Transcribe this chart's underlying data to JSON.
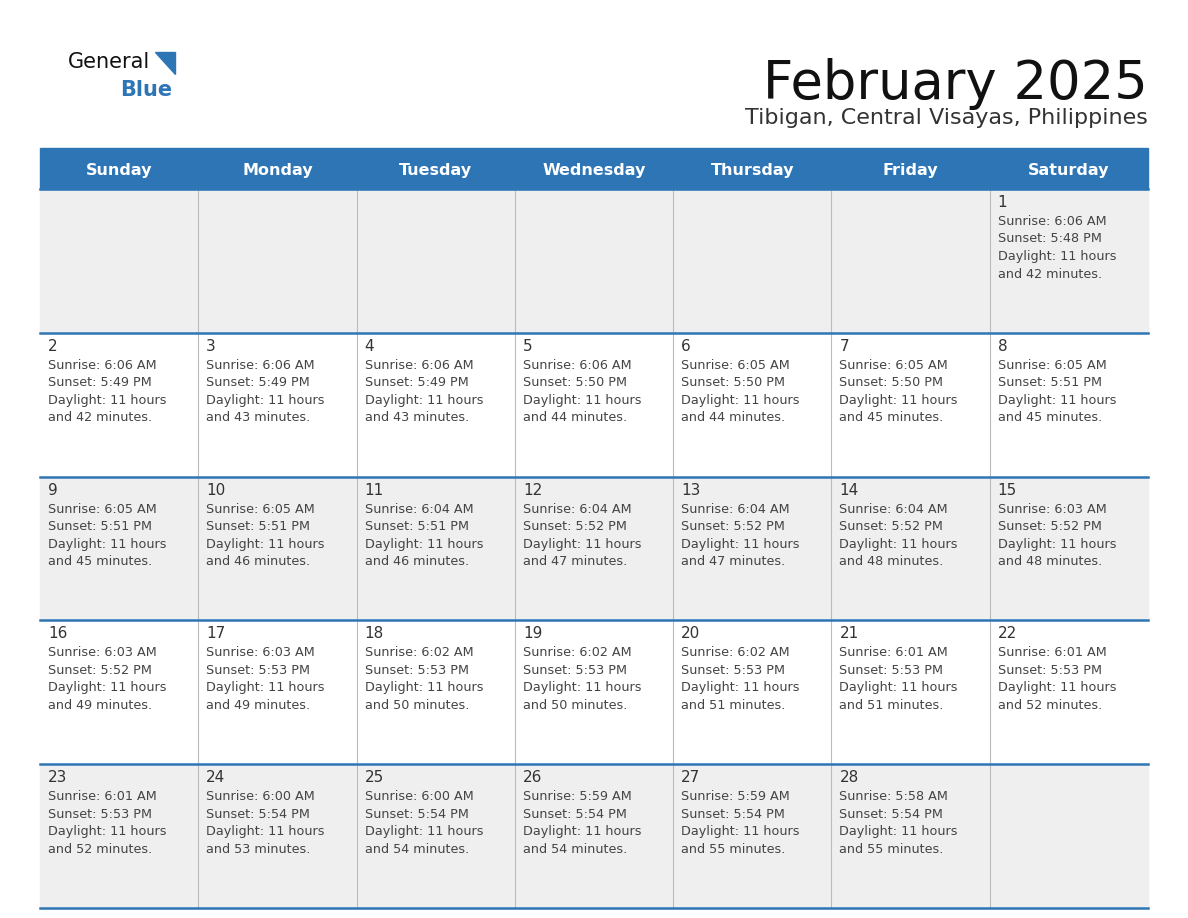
{
  "title": "February 2025",
  "subtitle": "Tibigan, Central Visayas, Philippines",
  "header_bg": "#2E75B6",
  "header_text_color": "#FFFFFF",
  "day_names": [
    "Sunday",
    "Monday",
    "Tuesday",
    "Wednesday",
    "Thursday",
    "Friday",
    "Saturday"
  ],
  "week_row_bg_odd": "#EFEFEF",
  "week_row_bg_even": "#FFFFFF",
  "separator_color": "#2E75B6",
  "day_num_color": "#333333",
  "info_text_color": "#444444",
  "logo_general_color": "#111111",
  "logo_blue_color": "#2E75B6",
  "calendar_data": [
    [
      {
        "day": "",
        "sunrise": "",
        "sunset": "",
        "daylight_h": "",
        "daylight_m": ""
      },
      {
        "day": "",
        "sunrise": "",
        "sunset": "",
        "daylight_h": "",
        "daylight_m": ""
      },
      {
        "day": "",
        "sunrise": "",
        "sunset": "",
        "daylight_h": "",
        "daylight_m": ""
      },
      {
        "day": "",
        "sunrise": "",
        "sunset": "",
        "daylight_h": "",
        "daylight_m": ""
      },
      {
        "day": "",
        "sunrise": "",
        "sunset": "",
        "daylight_h": "",
        "daylight_m": ""
      },
      {
        "day": "",
        "sunrise": "",
        "sunset": "",
        "daylight_h": "",
        "daylight_m": ""
      },
      {
        "day": "1",
        "sunrise": "6:06 AM",
        "sunset": "5:48 PM",
        "daylight_h": "11 hours",
        "daylight_m": "and 42 minutes."
      }
    ],
    [
      {
        "day": "2",
        "sunrise": "6:06 AM",
        "sunset": "5:49 PM",
        "daylight_h": "11 hours",
        "daylight_m": "and 42 minutes."
      },
      {
        "day": "3",
        "sunrise": "6:06 AM",
        "sunset": "5:49 PM",
        "daylight_h": "11 hours",
        "daylight_m": "and 43 minutes."
      },
      {
        "day": "4",
        "sunrise": "6:06 AM",
        "sunset": "5:49 PM",
        "daylight_h": "11 hours",
        "daylight_m": "and 43 minutes."
      },
      {
        "day": "5",
        "sunrise": "6:06 AM",
        "sunset": "5:50 PM",
        "daylight_h": "11 hours",
        "daylight_m": "and 44 minutes."
      },
      {
        "day": "6",
        "sunrise": "6:05 AM",
        "sunset": "5:50 PM",
        "daylight_h": "11 hours",
        "daylight_m": "and 44 minutes."
      },
      {
        "day": "7",
        "sunrise": "6:05 AM",
        "sunset": "5:50 PM",
        "daylight_h": "11 hours",
        "daylight_m": "and 45 minutes."
      },
      {
        "day": "8",
        "sunrise": "6:05 AM",
        "sunset": "5:51 PM",
        "daylight_h": "11 hours",
        "daylight_m": "and 45 minutes."
      }
    ],
    [
      {
        "day": "9",
        "sunrise": "6:05 AM",
        "sunset": "5:51 PM",
        "daylight_h": "11 hours",
        "daylight_m": "and 45 minutes."
      },
      {
        "day": "10",
        "sunrise": "6:05 AM",
        "sunset": "5:51 PM",
        "daylight_h": "11 hours",
        "daylight_m": "and 46 minutes."
      },
      {
        "day": "11",
        "sunrise": "6:04 AM",
        "sunset": "5:51 PM",
        "daylight_h": "11 hours",
        "daylight_m": "and 46 minutes."
      },
      {
        "day": "12",
        "sunrise": "6:04 AM",
        "sunset": "5:52 PM",
        "daylight_h": "11 hours",
        "daylight_m": "and 47 minutes."
      },
      {
        "day": "13",
        "sunrise": "6:04 AM",
        "sunset": "5:52 PM",
        "daylight_h": "11 hours",
        "daylight_m": "and 47 minutes."
      },
      {
        "day": "14",
        "sunrise": "6:04 AM",
        "sunset": "5:52 PM",
        "daylight_h": "11 hours",
        "daylight_m": "and 48 minutes."
      },
      {
        "day": "15",
        "sunrise": "6:03 AM",
        "sunset": "5:52 PM",
        "daylight_h": "11 hours",
        "daylight_m": "and 48 minutes."
      }
    ],
    [
      {
        "day": "16",
        "sunrise": "6:03 AM",
        "sunset": "5:52 PM",
        "daylight_h": "11 hours",
        "daylight_m": "and 49 minutes."
      },
      {
        "day": "17",
        "sunrise": "6:03 AM",
        "sunset": "5:53 PM",
        "daylight_h": "11 hours",
        "daylight_m": "and 49 minutes."
      },
      {
        "day": "18",
        "sunrise": "6:02 AM",
        "sunset": "5:53 PM",
        "daylight_h": "11 hours",
        "daylight_m": "and 50 minutes."
      },
      {
        "day": "19",
        "sunrise": "6:02 AM",
        "sunset": "5:53 PM",
        "daylight_h": "11 hours",
        "daylight_m": "and 50 minutes."
      },
      {
        "day": "20",
        "sunrise": "6:02 AM",
        "sunset": "5:53 PM",
        "daylight_h": "11 hours",
        "daylight_m": "and 51 minutes."
      },
      {
        "day": "21",
        "sunrise": "6:01 AM",
        "sunset": "5:53 PM",
        "daylight_h": "11 hours",
        "daylight_m": "and 51 minutes."
      },
      {
        "day": "22",
        "sunrise": "6:01 AM",
        "sunset": "5:53 PM",
        "daylight_h": "11 hours",
        "daylight_m": "and 52 minutes."
      }
    ],
    [
      {
        "day": "23",
        "sunrise": "6:01 AM",
        "sunset": "5:53 PM",
        "daylight_h": "11 hours",
        "daylight_m": "and 52 minutes."
      },
      {
        "day": "24",
        "sunrise": "6:00 AM",
        "sunset": "5:54 PM",
        "daylight_h": "11 hours",
        "daylight_m": "and 53 minutes."
      },
      {
        "day": "25",
        "sunrise": "6:00 AM",
        "sunset": "5:54 PM",
        "daylight_h": "11 hours",
        "daylight_m": "and 54 minutes."
      },
      {
        "day": "26",
        "sunrise": "5:59 AM",
        "sunset": "5:54 PM",
        "daylight_h": "11 hours",
        "daylight_m": "and 54 minutes."
      },
      {
        "day": "27",
        "sunrise": "5:59 AM",
        "sunset": "5:54 PM",
        "daylight_h": "11 hours",
        "daylight_m": "and 55 minutes."
      },
      {
        "day": "28",
        "sunrise": "5:58 AM",
        "sunset": "5:54 PM",
        "daylight_h": "11 hours",
        "daylight_m": "and 55 minutes."
      },
      {
        "day": "",
        "sunrise": "",
        "sunset": "",
        "daylight_h": "",
        "daylight_m": ""
      }
    ]
  ]
}
